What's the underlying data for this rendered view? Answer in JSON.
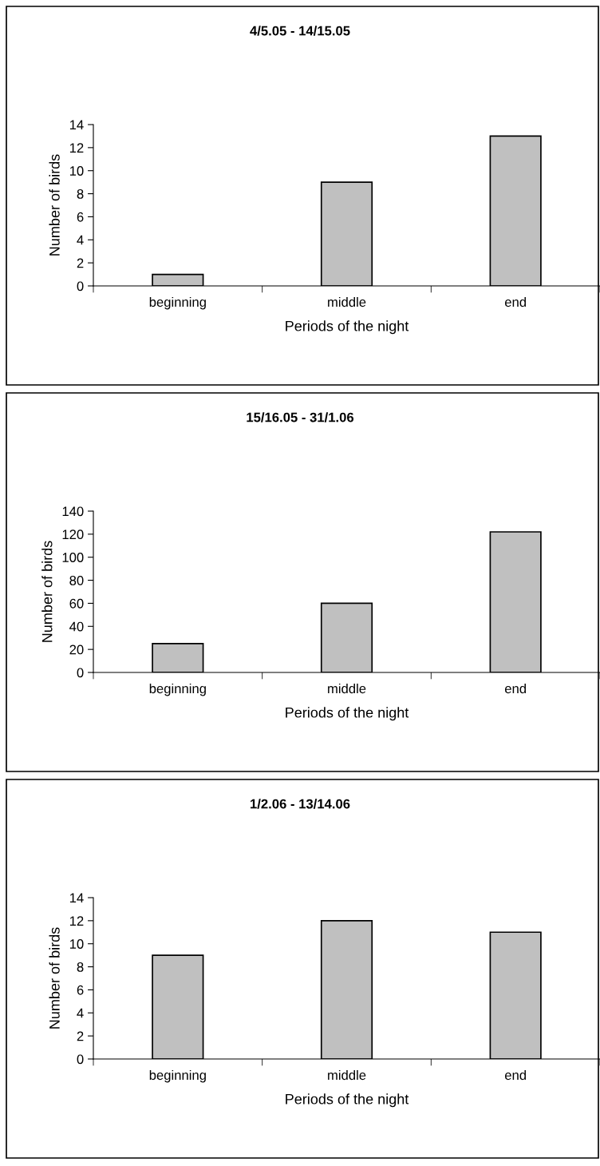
{
  "chart_data": [
    {
      "type": "bar",
      "title": "4/5.05 - 14/15.05",
      "xlabel": "Periods of the night",
      "ylabel": "Number of birds",
      "categories": [
        "beginning",
        "middle",
        "end"
      ],
      "values": [
        1,
        9,
        13
      ],
      "color": "#c0c0c0",
      "ylim": [
        0,
        14
      ],
      "yticks": [
        0,
        2,
        4,
        6,
        8,
        10,
        12,
        14
      ]
    },
    {
      "type": "bar",
      "title": "15/16.05 - 31/1.06",
      "xlabel": "Periods of the night",
      "ylabel": "Number of birds",
      "categories": [
        "beginning",
        "middle",
        "end"
      ],
      "values": [
        25,
        60,
        122
      ],
      "color": "#c0c0c0",
      "ylim": [
        0,
        140
      ],
      "yticks": [
        0,
        20,
        40,
        60,
        80,
        100,
        120,
        140
      ]
    },
    {
      "type": "bar",
      "title": "1/2.06 - 13/14.06",
      "xlabel": "Periods of the night",
      "ylabel": "Number of birds",
      "categories": [
        "beginning",
        "middle",
        "end"
      ],
      "values": [
        9,
        12,
        11
      ],
      "color": "#c0c0c0",
      "ylim": [
        0,
        14
      ],
      "yticks": [
        0,
        2,
        4,
        6,
        8,
        10,
        12,
        14
      ]
    }
  ]
}
